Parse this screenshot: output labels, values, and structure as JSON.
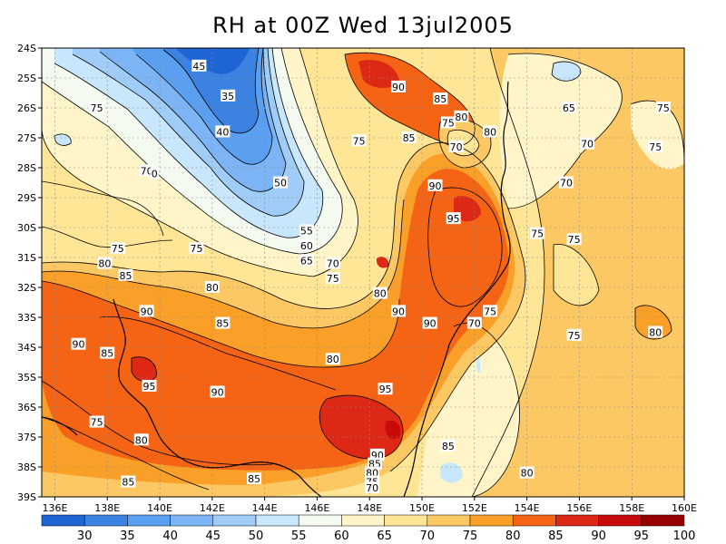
{
  "title": "RH at 00Z Wed 13jul2005",
  "lat_ticks": [
    "24S",
    "25S",
    "26S",
    "27S",
    "28S",
    "29S",
    "30S",
    "31S",
    "32S",
    "33S",
    "34S",
    "35S",
    "36S",
    "37S",
    "38S",
    "39S"
  ],
  "lon_ticks": [
    "136E",
    "138E",
    "140E",
    "142E",
    "144E",
    "146E",
    "148E",
    "150E",
    "152E",
    "154E",
    "156E",
    "158E",
    "160E"
  ],
  "colorbar": {
    "colors": [
      "#1e64d2",
      "#3c82e1",
      "#5a9ff0",
      "#7db4f5",
      "#a0cdf8",
      "#c8e6fc",
      "#f5faf0",
      "#fff5c8",
      "#ffe696",
      "#fcc864",
      "#faa028",
      "#f56414",
      "#dc2814",
      "#c80a0a",
      "#960000"
    ],
    "labels": [
      "30",
      "35",
      "40",
      "45",
      "50",
      "55",
      "60",
      "65",
      "70",
      "75",
      "80",
      "85",
      "90",
      "95",
      "100"
    ]
  },
  "contour_labels": [
    {
      "text": "45",
      "lon": 141.5,
      "lat": 24.6
    },
    {
      "text": "35",
      "lon": 142.6,
      "lat": 25.6
    },
    {
      "text": "40",
      "lon": 142.4,
      "lat": 26.8
    },
    {
      "text": "50",
      "lon": 144.6,
      "lat": 28.5
    },
    {
      "text": "55",
      "lon": 145.6,
      "lat": 30.1
    },
    {
      "text": "60",
      "lon": 145.6,
      "lat": 30.6
    },
    {
      "text": "65",
      "lon": 145.6,
      "lat": 31.1
    },
    {
      "text": "70",
      "lon": 146.6,
      "lat": 31.2
    },
    {
      "text": "75",
      "lon": 146.6,
      "lat": 31.7
    },
    {
      "text": "80",
      "lon": 148.4,
      "lat": 32.2
    },
    {
      "text": "90",
      "lon": 149.1,
      "lat": 25.3
    },
    {
      "text": "85",
      "lon": 150.7,
      "lat": 25.7
    },
    {
      "text": "75",
      "lon": 151.0,
      "lat": 26.5
    },
    {
      "text": "80",
      "lon": 151.5,
      "lat": 26.3
    },
    {
      "text": "85",
      "lon": 149.5,
      "lat": 27.0
    },
    {
      "text": "70",
      "lon": 151.3,
      "lat": 27.3
    },
    {
      "text": "80",
      "lon": 152.6,
      "lat": 26.8
    },
    {
      "text": "65",
      "lon": 155.6,
      "lat": 26.0
    },
    {
      "text": "75",
      "lon": 159.2,
      "lat": 26.0
    },
    {
      "text": "70",
      "lon": 156.3,
      "lat": 27.2
    },
    {
      "text": "75",
      "lon": 158.9,
      "lat": 27.3
    },
    {
      "text": "70",
      "lon": 155.5,
      "lat": 28.5
    },
    {
      "text": "75",
      "lon": 147.6,
      "lat": 27.1
    },
    {
      "text": "90",
      "lon": 150.5,
      "lat": 28.6
    },
    {
      "text": "95",
      "lon": 151.2,
      "lat": 29.7
    },
    {
      "text": "75",
      "lon": 154.4,
      "lat": 30.2
    },
    {
      "text": "75",
      "lon": 155.8,
      "lat": 30.4
    },
    {
      "text": "75",
      "lon": 137.6,
      "lat": 26.0
    },
    {
      "text": "70",
      "lon": 139.5,
      "lat": 28.1
    },
    {
      "text": "0",
      "lon": 139.8,
      "lat": 28.2
    },
    {
      "text": "75",
      "lon": 138.4,
      "lat": 30.7
    },
    {
      "text": "75",
      "lon": 141.4,
      "lat": 30.7
    },
    {
      "text": "80",
      "lon": 137.9,
      "lat": 31.2
    },
    {
      "text": "85",
      "lon": 138.7,
      "lat": 31.6
    },
    {
      "text": "80",
      "lon": 142.0,
      "lat": 32.0
    },
    {
      "text": "90",
      "lon": 139.5,
      "lat": 32.8
    },
    {
      "text": "85",
      "lon": 142.4,
      "lat": 33.2
    },
    {
      "text": "90",
      "lon": 149.1,
      "lat": 32.8
    },
    {
      "text": "90",
      "lon": 150.3,
      "lat": 33.2
    },
    {
      "text": "75",
      "lon": 152.6,
      "lat": 32.8
    },
    {
      "text": "70",
      "lon": 152.0,
      "lat": 33.2
    },
    {
      "text": "75",
      "lon": 155.8,
      "lat": 33.6
    },
    {
      "text": "80",
      "lon": 158.9,
      "lat": 33.5
    },
    {
      "text": "90",
      "lon": 136.9,
      "lat": 33.9
    },
    {
      "text": "85",
      "lon": 138.0,
      "lat": 34.2
    },
    {
      "text": "80",
      "lon": 146.6,
      "lat": 34.4
    },
    {
      "text": "95",
      "lon": 139.6,
      "lat": 35.3
    },
    {
      "text": "90",
      "lon": 142.2,
      "lat": 35.5
    },
    {
      "text": "95",
      "lon": 148.6,
      "lat": 35.4
    },
    {
      "text": "75",
      "lon": 137.6,
      "lat": 36.5
    },
    {
      "text": "80",
      "lon": 139.3,
      "lat": 37.1
    },
    {
      "text": "85",
      "lon": 151.0,
      "lat": 37.3
    },
    {
      "text": "90",
      "lon": 148.3,
      "lat": 37.6
    },
    {
      "text": "85",
      "lon": 148.2,
      "lat": 37.9
    },
    {
      "text": "80",
      "lon": 148.1,
      "lat": 38.2
    },
    {
      "text": "75",
      "lon": 148.1,
      "lat": 38.5
    },
    {
      "text": "70",
      "lon": 148.1,
      "lat": 38.7
    },
    {
      "text": "85",
      "lon": 138.8,
      "lat": 38.5
    },
    {
      "text": "85",
      "lon": 143.6,
      "lat": 38.4
    },
    {
      "text": "80",
      "lon": 154.0,
      "lat": 38.2
    }
  ]
}
